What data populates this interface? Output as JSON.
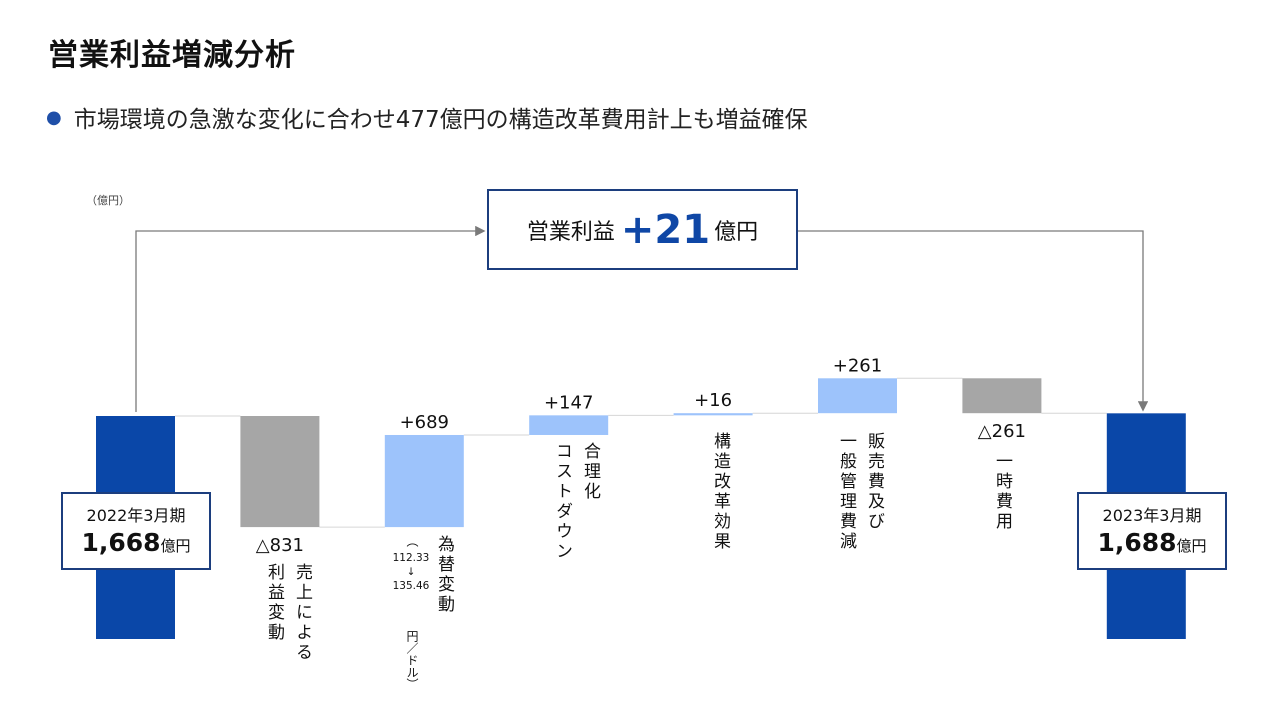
{
  "title": "営業利益増減分析",
  "bullet": "市場環境の急激な変化に合わせ477億円の構造改革費用計上も増益確保",
  "unit_label": "（億円）",
  "headline": {
    "label": "営業利益",
    "value": "+21",
    "unit": "億円"
  },
  "start": {
    "period": "2022年3月期",
    "value": "1,668",
    "unit": "億円"
  },
  "end": {
    "period": "2023年3月期",
    "value": "1,688",
    "unit": "億円"
  },
  "labels": {
    "sales_line1": "売上による",
    "sales_line2": "利益変動",
    "fx_line1": "為替変動",
    "fx_line2": "円／ドル）",
    "fx_paren_open": "（",
    "fx_rate_from": "112.33",
    "fx_arrow": "↓",
    "fx_rate_to": "135.46",
    "rat_line1": "合理化",
    "rat_line2": "コストダウン",
    "reform": "構造改革効果",
    "sga_line1": "販売費及び",
    "sga_line2": "一般管理費減",
    "onetime": "一時費用"
  },
  "colors": {
    "total": "#0a47a8",
    "negative": "#a6a6a6",
    "positive": "#9dc3fb",
    "box_border": "#1c3e7e",
    "accent": "#0f47a6"
  },
  "chart_data": {
    "type": "bar",
    "subtype": "waterfall",
    "unit": "億円",
    "categories": [
      "2022年3月期",
      "売上による利益変動",
      "為替変動",
      "合理化コストダウン",
      "構造改革効果",
      "販売費及び一般管理費減",
      "一時費用",
      "2023年3月期"
    ],
    "values": [
      1668,
      -831,
      689,
      147,
      16,
      261,
      -261,
      1688
    ],
    "kinds": [
      "total",
      "negative",
      "positive",
      "positive",
      "positive",
      "positive",
      "negative",
      "total"
    ],
    "value_labels": [
      "",
      "△831",
      "+689",
      "+147",
      "+16",
      "+261",
      "△261",
      ""
    ],
    "ylim": [
      0,
      2400
    ]
  }
}
